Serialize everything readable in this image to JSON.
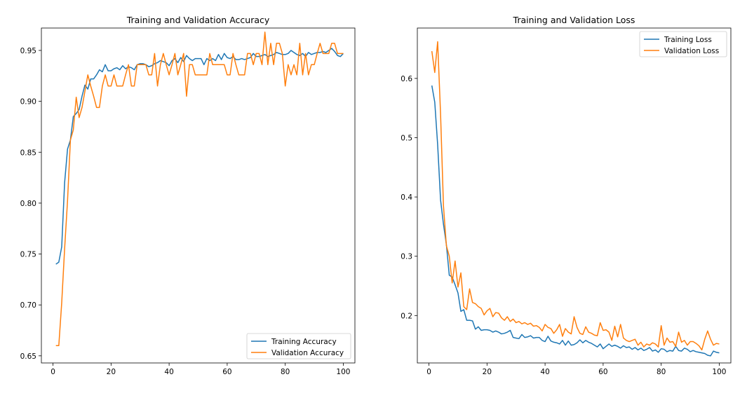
{
  "chart_data": [
    {
      "type": "line",
      "title": "Training and Validation Accuracy",
      "xlabel": "",
      "ylabel": "",
      "xlim": [
        -4,
        104
      ],
      "ylim": [
        0.643,
        0.972
      ],
      "xticks": [
        0,
        20,
        40,
        60,
        80,
        100
      ],
      "yticks": [
        0.65,
        0.7,
        0.75,
        0.8,
        0.85,
        0.9,
        0.95
      ],
      "tick_labels_y": [
        "0.65",
        "0.70",
        "0.75",
        "0.80",
        "0.85",
        "0.90",
        "0.95"
      ],
      "tick_labels_x": [
        "0",
        "20",
        "40",
        "60",
        "80",
        "100"
      ],
      "grid": false,
      "legend_position": "lower-right",
      "x": [
        1,
        2,
        3,
        4,
        5,
        6,
        7,
        8,
        9,
        10,
        11,
        12,
        13,
        14,
        15,
        16,
        17,
        18,
        19,
        20,
        21,
        22,
        23,
        24,
        25,
        26,
        27,
        28,
        29,
        30,
        31,
        32,
        33,
        34,
        35,
        36,
        37,
        38,
        39,
        40,
        41,
        42,
        43,
        44,
        45,
        46,
        47,
        48,
        49,
        50,
        51,
        52,
        53,
        54,
        55,
        56,
        57,
        58,
        59,
        60,
        61,
        62,
        63,
        64,
        65,
        66,
        67,
        68,
        69,
        70,
        71,
        72,
        73,
        74,
        75,
        76,
        77,
        78,
        79,
        80,
        81,
        82,
        83,
        84,
        85,
        86,
        87,
        88,
        89,
        90,
        91,
        92,
        93,
        94,
        95,
        96,
        97,
        98,
        99,
        100
      ],
      "series": [
        {
          "name": "Training Accuracy",
          "color": "#1f77b4",
          "values": [
            0.74,
            0.742,
            0.757,
            0.82,
            0.853,
            0.862,
            0.885,
            0.888,
            0.892,
            0.905,
            0.916,
            0.912,
            0.922,
            0.922,
            0.926,
            0.931,
            0.929,
            0.936,
            0.93,
            0.93,
            0.932,
            0.933,
            0.931,
            0.935,
            0.932,
            0.934,
            0.933,
            0.931,
            0.936,
            0.937,
            0.937,
            0.936,
            0.934,
            0.935,
            0.937,
            0.938,
            0.94,
            0.939,
            0.938,
            0.935,
            0.94,
            0.942,
            0.938,
            0.943,
            0.939,
            0.945,
            0.942,
            0.94,
            0.942,
            0.942,
            0.942,
            0.936,
            0.942,
            0.94,
            0.942,
            0.94,
            0.946,
            0.941,
            0.947,
            0.943,
            0.942,
            0.944,
            0.941,
            0.941,
            0.942,
            0.941,
            0.942,
            0.943,
            0.947,
            0.944,
            0.944,
            0.945,
            0.946,
            0.944,
            0.945,
            0.946,
            0.948,
            0.947,
            0.946,
            0.946,
            0.947,
            0.95,
            0.948,
            0.946,
            0.945,
            0.947,
            0.944,
            0.948,
            0.946,
            0.947,
            0.948,
            0.948,
            0.949,
            0.948,
            0.95,
            0.952,
            0.949,
            0.945,
            0.944,
            0.947
          ]
        },
        {
          "name": "Validation Accuracy",
          "color": "#ff7f0e",
          "values": [
            0.66,
            0.66,
            0.702,
            0.755,
            0.802,
            0.862,
            0.872,
            0.904,
            0.884,
            0.894,
            0.91,
            0.926,
            0.915,
            0.905,
            0.894,
            0.894,
            0.915,
            0.926,
            0.915,
            0.915,
            0.926,
            0.915,
            0.915,
            0.915,
            0.926,
            0.936,
            0.915,
            0.915,
            0.936,
            0.936,
            0.936,
            0.936,
            0.926,
            0.926,
            0.947,
            0.915,
            0.936,
            0.947,
            0.936,
            0.926,
            0.936,
            0.947,
            0.926,
            0.936,
            0.947,
            0.905,
            0.936,
            0.936,
            0.926,
            0.926,
            0.926,
            0.926,
            0.926,
            0.947,
            0.936,
            0.936,
            0.936,
            0.936,
            0.936,
            0.926,
            0.926,
            0.947,
            0.936,
            0.926,
            0.926,
            0.926,
            0.947,
            0.947,
            0.936,
            0.947,
            0.947,
            0.936,
            0.968,
            0.936,
            0.957,
            0.936,
            0.957,
            0.957,
            0.947,
            0.915,
            0.936,
            0.926,
            0.936,
            0.926,
            0.957,
            0.926,
            0.947,
            0.926,
            0.936,
            0.936,
            0.947,
            0.957,
            0.947,
            0.947,
            0.947,
            0.957,
            0.957,
            0.947,
            0.947,
            0.947
          ]
        }
      ]
    },
    {
      "type": "line",
      "title": "Training and Validation Loss",
      "xlabel": "",
      "ylabel": "",
      "xlim": [
        -4,
        104
      ],
      "ylim": [
        0.12,
        0.685
      ],
      "xticks": [
        0,
        20,
        40,
        60,
        80,
        100
      ],
      "yticks": [
        0.2,
        0.3,
        0.4,
        0.5,
        0.6
      ],
      "tick_labels_y": [
        "0.2",
        "0.3",
        "0.4",
        "0.5",
        "0.6"
      ],
      "tick_labels_x": [
        "0",
        "20",
        "40",
        "60",
        "80",
        "100"
      ],
      "grid": false,
      "legend_position": "upper-right",
      "x": [
        1,
        2,
        3,
        4,
        5,
        6,
        7,
        8,
        9,
        10,
        11,
        12,
        13,
        14,
        15,
        16,
        17,
        18,
        19,
        20,
        21,
        22,
        23,
        24,
        25,
        26,
        27,
        28,
        29,
        30,
        31,
        32,
        33,
        34,
        35,
        36,
        37,
        38,
        39,
        40,
        41,
        42,
        43,
        44,
        45,
        46,
        47,
        48,
        49,
        50,
        51,
        52,
        53,
        54,
        55,
        56,
        57,
        58,
        59,
        60,
        61,
        62,
        63,
        64,
        65,
        66,
        67,
        68,
        69,
        70,
        71,
        72,
        73,
        74,
        75,
        76,
        77,
        78,
        79,
        80,
        81,
        82,
        83,
        84,
        85,
        86,
        87,
        88,
        89,
        90,
        91,
        92,
        93,
        94,
        95,
        96,
        97,
        98,
        99,
        100
      ],
      "series": [
        {
          "name": "Training Loss",
          "color": "#1f77b4",
          "values": [
            0.588,
            0.56,
            0.488,
            0.395,
            0.354,
            0.32,
            0.268,
            0.265,
            0.252,
            0.238,
            0.207,
            0.21,
            0.192,
            0.192,
            0.191,
            0.177,
            0.181,
            0.175,
            0.176,
            0.176,
            0.175,
            0.172,
            0.174,
            0.172,
            0.169,
            0.17,
            0.172,
            0.175,
            0.163,
            0.162,
            0.161,
            0.168,
            0.163,
            0.164,
            0.166,
            0.162,
            0.163,
            0.163,
            0.158,
            0.156,
            0.165,
            0.157,
            0.155,
            0.154,
            0.152,
            0.158,
            0.15,
            0.157,
            0.15,
            0.151,
            0.154,
            0.159,
            0.154,
            0.158,
            0.155,
            0.153,
            0.15,
            0.147,
            0.152,
            0.144,
            0.148,
            0.152,
            0.148,
            0.15,
            0.148,
            0.145,
            0.149,
            0.146,
            0.147,
            0.143,
            0.146,
            0.142,
            0.145,
            0.141,
            0.143,
            0.146,
            0.14,
            0.142,
            0.138,
            0.144,
            0.143,
            0.139,
            0.141,
            0.14,
            0.148,
            0.141,
            0.14,
            0.145,
            0.143,
            0.139,
            0.141,
            0.139,
            0.138,
            0.137,
            0.136,
            0.133,
            0.132,
            0.14,
            0.138,
            0.137
          ]
        },
        {
          "name": "Validation Loss",
          "color": "#ff7f0e",
          "values": [
            0.646,
            0.61,
            0.662,
            0.54,
            0.385,
            0.318,
            0.3,
            0.255,
            0.292,
            0.248,
            0.272,
            0.215,
            0.21,
            0.245,
            0.222,
            0.22,
            0.215,
            0.212,
            0.201,
            0.208,
            0.212,
            0.198,
            0.205,
            0.204,
            0.196,
            0.192,
            0.198,
            0.19,
            0.194,
            0.188,
            0.19,
            0.186,
            0.188,
            0.185,
            0.187,
            0.182,
            0.183,
            0.18,
            0.174,
            0.185,
            0.18,
            0.178,
            0.17,
            0.176,
            0.185,
            0.165,
            0.178,
            0.172,
            0.169,
            0.198,
            0.18,
            0.17,
            0.168,
            0.181,
            0.172,
            0.17,
            0.167,
            0.166,
            0.188,
            0.175,
            0.176,
            0.172,
            0.158,
            0.182,
            0.164,
            0.185,
            0.162,
            0.158,
            0.156,
            0.158,
            0.16,
            0.15,
            0.155,
            0.147,
            0.152,
            0.15,
            0.154,
            0.152,
            0.147,
            0.183,
            0.15,
            0.162,
            0.155,
            0.156,
            0.148,
            0.172,
            0.155,
            0.158,
            0.15,
            0.156,
            0.156,
            0.153,
            0.149,
            0.142,
            0.16,
            0.174,
            0.16,
            0.15,
            0.153,
            0.152
          ]
        }
      ]
    }
  ]
}
